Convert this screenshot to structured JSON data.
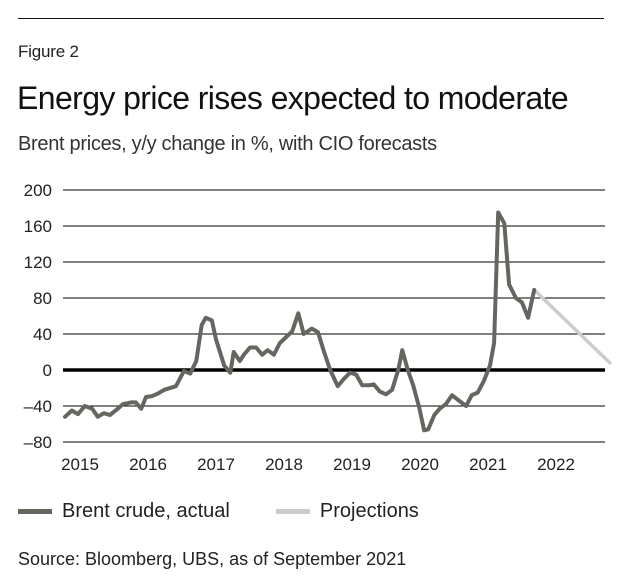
{
  "figure_label": "Figure 2",
  "title": "Energy price rises expected to moderate",
  "subtitle": "Brent prices, y/y change in %, with CIO forecasts",
  "source": "Source: Bloomberg, UBS, as of September 2021",
  "colors": {
    "actual": "#66655f",
    "projection": "#cccccc",
    "grid": "#000000",
    "zero_line": "#000000"
  },
  "legend": [
    {
      "label": "Brent crude, actual",
      "color": "#66655f"
    },
    {
      "label": "Projections",
      "color": "#cccccc"
    }
  ],
  "chart_data": {
    "type": "line",
    "title": "Energy price rises expected to moderate",
    "subtitle": "Brent prices, y/y change in %, with CIO forecasts",
    "xlabel": "",
    "ylabel": "",
    "ylim": [
      -80,
      200
    ],
    "yticks": [
      200,
      160,
      120,
      80,
      40,
      0,
      -40,
      -80
    ],
    "ytick_labels": [
      "200",
      "160",
      "120",
      "80",
      "40",
      "0",
      "–40",
      "–80"
    ],
    "xlim": [
      2014.75,
      2022.8
    ],
    "xticks": [
      2015,
      2016,
      2017,
      2018,
      2019,
      2020,
      2021,
      2022
    ],
    "xtick_labels": [
      "2015",
      "2016",
      "2017",
      "2018",
      "2019",
      "2020",
      "2021",
      "2022"
    ],
    "grid": true,
    "legend_position": "bottom",
    "series": [
      {
        "name": "Brent crude, actual",
        "x": [
          2014.78,
          2014.88,
          2014.97,
          2015.07,
          2015.18,
          2015.26,
          2015.35,
          2015.44,
          2015.54,
          2015.63,
          2015.75,
          2015.82,
          2015.9,
          2015.97,
          2016.06,
          2016.15,
          2016.24,
          2016.41,
          2016.53,
          2016.62,
          2016.71,
          2016.79,
          2016.85,
          2016.94,
          2017.0,
          2017.12,
          2017.21,
          2017.26,
          2017.35,
          2017.41,
          2017.5,
          2017.59,
          2017.68,
          2017.76,
          2017.85,
          2017.94,
          2018.12,
          2018.21,
          2018.29,
          2018.41,
          2018.5,
          2018.59,
          2018.68,
          2018.79,
          2018.88,
          2018.97,
          2019.06,
          2019.15,
          2019.24,
          2019.32,
          2019.41,
          2019.5,
          2019.59,
          2019.68,
          2019.74,
          2019.82,
          2019.9,
          2019.99,
          2020.06,
          2020.12,
          2020.21,
          2020.29,
          2020.38,
          2020.47,
          2020.59,
          2020.68,
          2020.76,
          2020.85,
          2020.94,
          2021.03,
          2021.09,
          2021.15,
          2021.24,
          2021.31,
          2021.41,
          2021.5,
          2021.59,
          2021.68
        ],
        "y": [
          -52,
          -45,
          -49,
          -40,
          -43,
          -52,
          -48,
          -50,
          -44,
          -38,
          -36,
          -36,
          -43,
          -30,
          -29,
          -26,
          -22,
          -18,
          -1,
          -4,
          10,
          50,
          58,
          55,
          34,
          5,
          -3,
          20,
          10,
          17,
          25,
          25,
          17,
          22,
          17,
          30,
          43,
          63,
          40,
          46,
          42,
          20,
          0,
          -18,
          -10,
          -3,
          -5,
          -17,
          -17,
          -16,
          -24,
          -27,
          -22,
          0,
          22,
          0,
          -17,
          -42,
          -67,
          -66,
          -50,
          -43,
          -38,
          -28,
          -35,
          -40,
          -28,
          -25,
          -12,
          5,
          30,
          175,
          163,
          95,
          80,
          75,
          58,
          89
        ]
      },
      {
        "name": "Projections",
        "x": [
          2021.68,
          2022.79
        ],
        "y": [
          89,
          8
        ]
      }
    ]
  }
}
